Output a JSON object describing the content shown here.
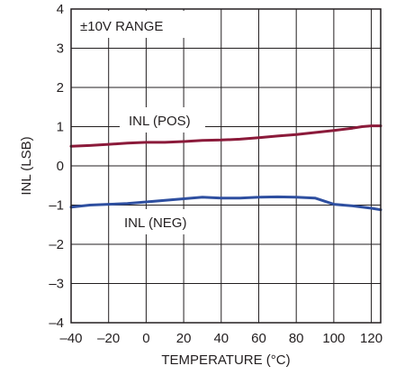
{
  "chart_data": {
    "type": "line",
    "xlabel": "TEMPERATURE (°C)",
    "ylabel": "INL (LSB)",
    "xlim": [
      -40,
      125
    ],
    "ylim": [
      -4,
      4
    ],
    "x_ticks": [
      -40,
      -20,
      0,
      20,
      40,
      60,
      80,
      100,
      120
    ],
    "y_ticks": [
      -4,
      -3,
      -2,
      -1,
      0,
      1,
      2,
      3,
      4
    ],
    "x_tick_labels": [
      "–40",
      "–20",
      "0",
      "20",
      "40",
      "60",
      "80",
      "100",
      "120"
    ],
    "y_tick_labels": [
      "–4",
      "–3",
      "–2",
      "–1",
      "0",
      "1",
      "2",
      "3",
      "4"
    ],
    "grid": true,
    "annotations": [
      "±10V RANGE"
    ],
    "series": [
      {
        "name": "INL (POS)",
        "color": "#8b1a3a",
        "x": [
          -40,
          -30,
          -20,
          -10,
          0,
          10,
          20,
          30,
          40,
          50,
          60,
          70,
          80,
          90,
          100,
          110,
          115,
          120,
          125
        ],
        "y": [
          0.5,
          0.52,
          0.55,
          0.58,
          0.6,
          0.6,
          0.62,
          0.65,
          0.66,
          0.68,
          0.72,
          0.76,
          0.8,
          0.85,
          0.9,
          0.96,
          1.0,
          1.02,
          1.02
        ]
      },
      {
        "name": "INL (NEG)",
        "color": "#2e4fa0",
        "x": [
          -40,
          -30,
          -20,
          -10,
          0,
          10,
          20,
          30,
          40,
          50,
          60,
          70,
          80,
          90,
          100,
          110,
          120,
          125
        ],
        "y": [
          -1.05,
          -1.0,
          -0.98,
          -0.96,
          -0.92,
          -0.88,
          -0.84,
          -0.8,
          -0.82,
          -0.82,
          -0.8,
          -0.79,
          -0.8,
          -0.82,
          -0.98,
          -1.02,
          -1.08,
          -1.12
        ]
      }
    ]
  }
}
